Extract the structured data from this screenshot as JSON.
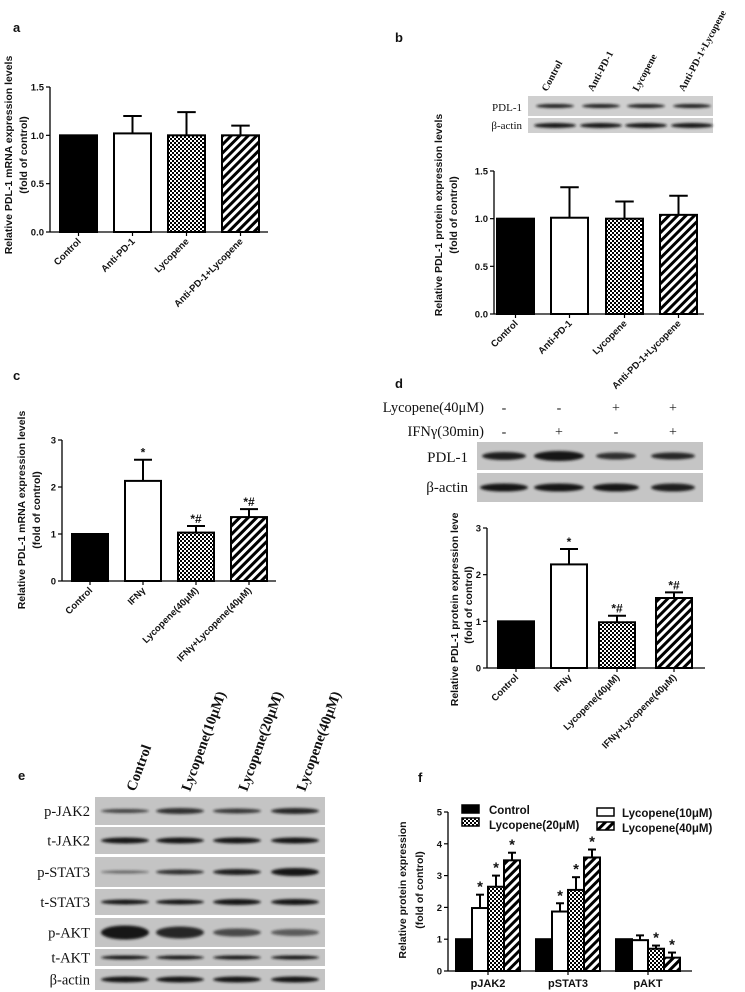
{
  "panels": {
    "a": {
      "label": "a"
    },
    "b": {
      "label": "b",
      "blot": {
        "lanes": [
          "Control",
          "Anti-PD-1",
          "Lycopene",
          "Anti-PD-1+Lycopene"
        ],
        "rows": [
          "PDL-1",
          "β-actin"
        ]
      }
    },
    "c": {
      "label": "c"
    },
    "d": {
      "label": "d",
      "treatments": [
        {
          "name": "Lycopene(40μM)",
          "signs": [
            "-",
            "-",
            "+",
            "+"
          ]
        },
        {
          "name": "IFNγ(30min)",
          "signs": [
            "-",
            "+",
            "-",
            "+"
          ]
        }
      ],
      "blot": {
        "rows": [
          "PDL-1",
          "β-actin"
        ]
      }
    },
    "e": {
      "label": "e",
      "blot": {
        "lanes": [
          "Control",
          "Lycopene(10μM)",
          "Lycopene(20μM)",
          "Lycopene(40μM)"
        ],
        "rows": [
          "p-JAK2",
          "t-JAK2",
          "p-STAT3",
          "t-STAT3",
          "p-AKT",
          "t-AKT",
          "β-actin"
        ]
      }
    },
    "f": {
      "label": "f"
    }
  },
  "colors": {
    "control": "#000000",
    "bar_outline": "#000000",
    "blot_bg": "#c8c8c8",
    "band": "#1a1a1a"
  },
  "chart_data": [
    {
      "id": "a",
      "type": "bar",
      "ylabel": "Relative PDL-1 mRNA expression levels",
      "ylabel2": "(fold of control)",
      "categories": [
        "Control",
        "Anti-PD-1",
        "Lycopene",
        "Anti-PD-1+Lycopene"
      ],
      "fills": [
        "solid-black",
        "white",
        "checker",
        "diagonal-stripes"
      ],
      "values": [
        1.0,
        1.02,
        1.0,
        1.0
      ],
      "error_upper": [
        null,
        1.2,
        1.24,
        1.1
      ],
      "annotations": [
        "",
        "",
        "",
        ""
      ],
      "ylim": [
        0,
        1.5
      ],
      "yticks": [
        "0.0",
        "0.5",
        "1.0",
        "1.5"
      ]
    },
    {
      "id": "b",
      "type": "bar",
      "ylabel": "Relative PDL-1 protein expression levels",
      "ylabel2": "(fold of control)",
      "categories": [
        "Control",
        "Anti-PD-1",
        "Lycopene",
        "Anti-PD-1+Lycopene"
      ],
      "fills": [
        "solid-black",
        "white",
        "checker",
        "diagonal-stripes"
      ],
      "values": [
        1.0,
        1.01,
        1.0,
        1.04
      ],
      "error_upper": [
        null,
        1.33,
        1.18,
        1.24
      ],
      "annotations": [
        "",
        "",
        "",
        ""
      ],
      "ylim": [
        0,
        1.5
      ],
      "yticks": [
        "0.0",
        "0.5",
        "1.0",
        "1.5"
      ]
    },
    {
      "id": "c",
      "type": "bar",
      "ylabel": "Relative PDL-1 mRNA expression levels",
      "ylabel2": "(fold of control)",
      "categories": [
        "Control",
        "IFNγ",
        "Lycopene(40μM)",
        "IFNγ+Lycopene(40μM)"
      ],
      "fills": [
        "solid-black",
        "white",
        "checker",
        "diagonal-stripes"
      ],
      "values": [
        1.0,
        2.13,
        1.03,
        1.36
      ],
      "error_upper": [
        null,
        2.58,
        1.17,
        1.53
      ],
      "annotations": [
        "",
        "*",
        "*#",
        "*#"
      ],
      "ylim": [
        0,
        3
      ],
      "yticks": [
        "0",
        "1",
        "2",
        "3"
      ]
    },
    {
      "id": "d",
      "type": "bar",
      "ylabel": "Relative PDL-1 protein expression levels",
      "ylabel2": "(fold of control)",
      "categories": [
        "Control",
        "IFNγ",
        "Lycopene(40μM)",
        "IFNγ+Lycopene(40μM)"
      ],
      "fills": [
        "solid-black",
        "white",
        "checker",
        "diagonal-stripes"
      ],
      "values": [
        1.0,
        2.22,
        0.98,
        1.5
      ],
      "error_upper": [
        null,
        2.55,
        1.12,
        1.62
      ],
      "annotations": [
        "",
        "*",
        "*#",
        "*#"
      ],
      "ylim": [
        0,
        3
      ],
      "yticks": [
        "0",
        "1",
        "2",
        "3"
      ]
    },
    {
      "id": "f",
      "type": "bar",
      "ylabel": "Relative protein expression",
      "ylabel2": "(fold of control)",
      "categories": [
        "pJAK2",
        "pSTAT3",
        "pAKT"
      ],
      "legend_position": "top",
      "series": [
        {
          "name": "Control",
          "fill": "solid-black",
          "values": [
            1,
            1,
            1
          ],
          "error_upper": [
            null,
            null,
            null
          ],
          "annotations": [
            "",
            "",
            ""
          ]
        },
        {
          "name": "Lycopene(10μM)",
          "fill": "white",
          "values": [
            1.98,
            1.87,
            0.97
          ],
          "error_upper": [
            2.4,
            2.13,
            1.12
          ],
          "annotations": [
            "*",
            "*",
            ""
          ]
        },
        {
          "name": "Lycopene(20μM)",
          "fill": "checker",
          "values": [
            2.65,
            2.55,
            0.7
          ],
          "error_upper": [
            3.0,
            2.95,
            0.8
          ],
          "annotations": [
            "*",
            "*",
            "*"
          ]
        },
        {
          "name": "Lycopene(40μM)",
          "fill": "diagonal-stripes",
          "values": [
            3.48,
            3.57,
            0.42
          ],
          "error_upper": [
            3.72,
            3.82,
            0.58
          ],
          "annotations": [
            "*",
            "*",
            "*"
          ]
        }
      ],
      "ylim": [
        0,
        5
      ],
      "yticks": [
        "0",
        "1",
        "2",
        "3",
        "4",
        "5"
      ]
    }
  ]
}
